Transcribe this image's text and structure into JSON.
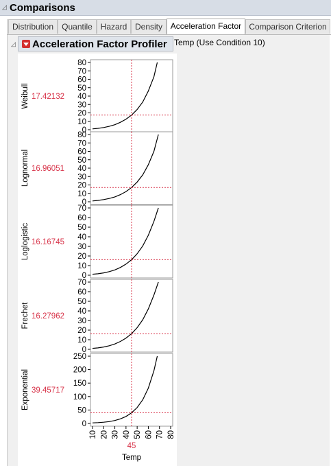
{
  "header": {
    "title": "Comparisons"
  },
  "tabs": [
    {
      "label": "Distribution",
      "active": false
    },
    {
      "label": "Quantile",
      "active": false
    },
    {
      "label": "Hazard",
      "active": false
    },
    {
      "label": "Density",
      "active": false
    },
    {
      "label": "Acceleration Factor",
      "active": true
    },
    {
      "label": "Comparison Criterion",
      "active": false
    }
  ],
  "profiler": {
    "title": "Acceleration Factor Profiler",
    "condition_label": "Temp (Use Condition 10)",
    "menu_icon": "red-triangle-menu-icon"
  },
  "colors": {
    "curve": "#000000",
    "crosshair": "#d8344a",
    "header_bg": "#d7dde6"
  },
  "chart_data": [
    {
      "type": "line",
      "ylabel": "Weibull",
      "readout": "17.42132",
      "ylim": [
        0,
        80
      ],
      "yticks": [
        0,
        10,
        20,
        30,
        40,
        50,
        60,
        70,
        80
      ],
      "x_current": 45,
      "y_current": 17.42132,
      "x": [
        10,
        15,
        20,
        25,
        30,
        35,
        40,
        45,
        50,
        55,
        60,
        65,
        68
      ],
      "y": [
        1,
        1.6,
        2.6,
        4,
        6,
        8.8,
        12.6,
        17.42,
        24,
        33,
        46,
        63,
        80
      ]
    },
    {
      "type": "line",
      "ylabel": "Lognormal",
      "readout": "16.96051",
      "ylim": [
        0,
        80
      ],
      "yticks": [
        0,
        10,
        20,
        30,
        40,
        50,
        60,
        70,
        80
      ],
      "x_current": 45,
      "y_current": 16.96051,
      "x": [
        10,
        15,
        20,
        25,
        30,
        35,
        40,
        45,
        50,
        55,
        60,
        65,
        69
      ],
      "y": [
        1,
        1.6,
        2.6,
        3.9,
        5.8,
        8.5,
        12.2,
        16.96,
        23.4,
        32,
        44,
        60,
        80
      ]
    },
    {
      "type": "line",
      "ylabel": "Loglogistic",
      "readout": "16.16745",
      "ylim": [
        0,
        70
      ],
      "yticks": [
        0,
        10,
        20,
        30,
        40,
        50,
        60,
        70
      ],
      "x_current": 45,
      "y_current": 16.16745,
      "x": [
        10,
        15,
        20,
        25,
        30,
        35,
        40,
        45,
        50,
        55,
        60,
        65,
        69
      ],
      "y": [
        1,
        1.5,
        2.4,
        3.7,
        5.5,
        8.1,
        11.6,
        16.17,
        22.3,
        30.5,
        41.5,
        56,
        70
      ]
    },
    {
      "type": "line",
      "ylabel": "Frechet",
      "readout": "16.27962",
      "ylim": [
        0,
        70
      ],
      "yticks": [
        0,
        10,
        20,
        30,
        40,
        50,
        60,
        70
      ],
      "x_current": 45,
      "y_current": 16.27962,
      "x": [
        10,
        15,
        20,
        25,
        30,
        35,
        40,
        45,
        50,
        55,
        60,
        65,
        69
      ],
      "y": [
        1,
        1.5,
        2.4,
        3.7,
        5.6,
        8.2,
        11.7,
        16.28,
        22.5,
        30.8,
        42,
        56.5,
        70
      ]
    },
    {
      "type": "line",
      "ylabel": "Exponential",
      "readout": "39.45717",
      "ylim": [
        0,
        250
      ],
      "yticks": [
        0,
        50,
        100,
        150,
        200,
        250
      ],
      "x_current": 45,
      "y_current": 39.45717,
      "x": [
        10,
        15,
        20,
        25,
        30,
        35,
        40,
        45,
        50,
        55,
        60,
        65,
        68
      ],
      "y": [
        2,
        3,
        4.5,
        7,
        11,
        17,
        26,
        39.46,
        59,
        88,
        131,
        196,
        250
      ]
    }
  ],
  "x_axis": {
    "label": "Temp",
    "xlim": [
      10,
      80
    ],
    "ticks": [
      "10",
      "20",
      "30",
      "40",
      "50",
      "60",
      "70",
      "80"
    ],
    "current_value": "45"
  }
}
